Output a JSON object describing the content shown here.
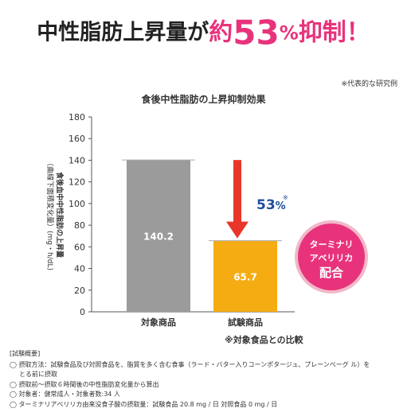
{
  "headline": {
    "part1": "中性脂肪上昇量が",
    "part2": "約",
    "part3": "53",
    "part4": "%",
    "part5": "抑制！"
  },
  "representative_note": "※代表的な研究例",
  "chart_data": {
    "type": "bar",
    "title": "食後中性脂肪の上昇抑制効果",
    "categories": [
      "対象商品",
      "試験商品"
    ],
    "values": [
      140.2,
      65.7
    ],
    "value_labels": [
      "140.2",
      "65.7"
    ],
    "bar_colors": [
      "#9b9b9b",
      "#f5ac12"
    ],
    "ylabel_line1": "食後血中中性脂肪の上昇量",
    "ylabel_line2": "（曲線下面積変化量）(mg・h/dL)",
    "ylim": [
      0,
      180
    ],
    "yticks": [
      0,
      20,
      40,
      60,
      80,
      100,
      120,
      140,
      160,
      180
    ],
    "grid": false,
    "reduction_label": "53",
    "reduction_mark": "※",
    "reduction_pct": "%",
    "arrow_color": "#e8372a",
    "badge_color": "#f0b9c8",
    "highlight_color": "#e8337c",
    "badge_lines": [
      "ターミナリ",
      "アベリリカ",
      "配合"
    ]
  },
  "comparison_note": "※対象食品との比較",
  "summary": {
    "heading": "[試験概要]",
    "items": [
      {
        "text": "◯ 摂取方法：試験食品及び対照食品を、脂質を多く含む食事（ラード・バター入りコーンポタージュ、プレーンベーグ ル）を",
        "cont": false
      },
      {
        "text": "とる前に摂取",
        "cont": true
      },
      {
        "text": "◯ 摂取前～摂取６時間後の中性脂肪変化量から算出",
        "cont": false
      },
      {
        "text": "◯ 対象者：健常成人・対象者数:34 人",
        "cont": false
      },
      {
        "text": "◯ ターミナリアベリリカ由来没食子酸の摂取量：試験食品 20.8 mg / 日 対照食品 0 mg / 日",
        "cont": false
      }
    ]
  }
}
